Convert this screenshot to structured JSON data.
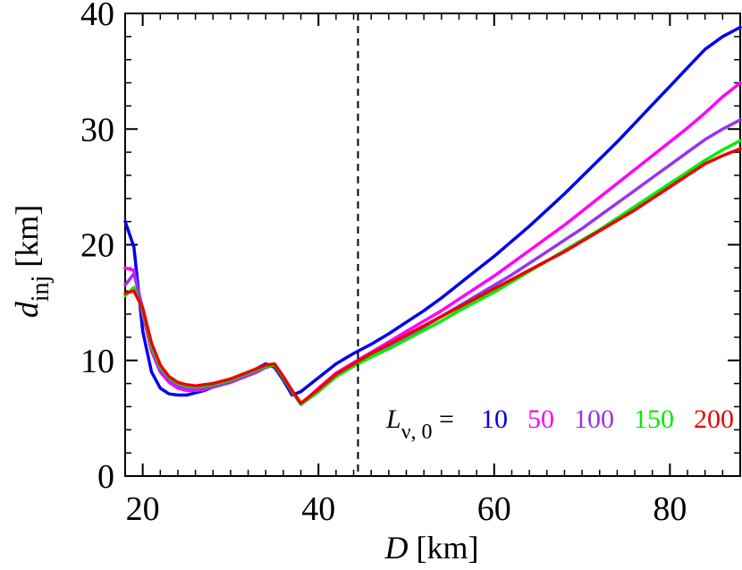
{
  "chart_data": {
    "type": "line",
    "title": "",
    "xlabel": {
      "italic": "D",
      "rest": " [km]"
    },
    "ylabel": {
      "italic": "d",
      "subscript": "inj",
      "rest": " [km]"
    },
    "xlim": [
      18,
      88
    ],
    "ylim": [
      0,
      40
    ],
    "xticks": [
      20,
      40,
      60,
      80
    ],
    "yticks": [
      0,
      10,
      20,
      30,
      40
    ],
    "grid": false,
    "reference_line": {
      "x": 44.5,
      "style": "dashed",
      "color": "#000000"
    },
    "legend": {
      "placement": "lower-right",
      "prefix_italic": "L",
      "prefix_subscript": "ν, 0",
      "prefix_suffix": " ="
    },
    "series": [
      {
        "name": "10",
        "color": "#0000ee",
        "x": [
          18,
          19,
          20,
          21,
          22,
          23,
          24,
          25,
          26,
          27,
          28,
          29,
          30,
          31,
          32,
          33,
          34,
          35,
          36,
          37,
          38,
          40,
          42,
          44,
          46,
          48,
          50,
          52,
          54,
          56,
          58,
          60,
          62,
          64,
          66,
          68,
          70,
          72,
          74,
          76,
          78,
          80,
          82,
          84,
          86,
          88
        ],
        "y": [
          22.0,
          19.8,
          12.5,
          9.0,
          7.6,
          7.1,
          7.0,
          7.0,
          7.2,
          7.4,
          7.7,
          8.0,
          8.3,
          8.6,
          8.9,
          9.3,
          9.7,
          9.4,
          8.3,
          7.0,
          7.3,
          8.5,
          9.7,
          10.6,
          11.4,
          12.3,
          13.3,
          14.3,
          15.4,
          16.6,
          17.8,
          19.0,
          20.3,
          21.6,
          23.0,
          24.4,
          25.9,
          27.4,
          28.9,
          30.5,
          32.1,
          33.7,
          35.3,
          36.9,
          38.0,
          38.8
        ]
      },
      {
        "name": "50",
        "color": "#ff00ff",
        "x": [
          18,
          19,
          20,
          21,
          22,
          23,
          24,
          25,
          26,
          27,
          28,
          29,
          30,
          31,
          32,
          33,
          34,
          35,
          36,
          37,
          38,
          40,
          42,
          44,
          46,
          48,
          50,
          52,
          54,
          56,
          58,
          60,
          62,
          64,
          66,
          68,
          70,
          72,
          74,
          76,
          78,
          80,
          82,
          84,
          86,
          88
        ],
        "y": [
          18.0,
          17.8,
          14.0,
          10.8,
          9.0,
          8.1,
          7.6,
          7.4,
          7.4,
          7.5,
          7.7,
          7.9,
          8.1,
          8.4,
          8.7,
          9.0,
          9.4,
          9.6,
          8.5,
          7.3,
          6.2,
          7.6,
          8.9,
          9.8,
          10.7,
          11.6,
          12.5,
          13.4,
          14.3,
          15.3,
          16.3,
          17.3,
          18.4,
          19.5,
          20.6,
          21.7,
          22.9,
          24.1,
          25.3,
          26.5,
          27.7,
          28.9,
          30.1,
          31.4,
          32.8,
          34.0
        ]
      },
      {
        "name": "100",
        "color": "#9933ee",
        "x": [
          18,
          19,
          20,
          21,
          22,
          23,
          24,
          25,
          26,
          27,
          28,
          29,
          30,
          31,
          32,
          33,
          34,
          35,
          36,
          37,
          38,
          40,
          42,
          44,
          46,
          48,
          50,
          52,
          54,
          56,
          58,
          60,
          62,
          64,
          66,
          68,
          70,
          72,
          74,
          76,
          78,
          80,
          82,
          84,
          86,
          88
        ],
        "y": [
          16.5,
          17.5,
          14.5,
          11.0,
          9.2,
          8.3,
          7.8,
          7.6,
          7.5,
          7.6,
          7.7,
          7.9,
          8.1,
          8.4,
          8.7,
          9.0,
          9.4,
          9.6,
          8.5,
          7.3,
          6.2,
          7.3,
          8.6,
          9.5,
          10.4,
          11.2,
          12.0,
          12.9,
          13.8,
          14.7,
          15.6,
          16.5,
          17.4,
          18.4,
          19.4,
          20.4,
          21.4,
          22.5,
          23.6,
          24.7,
          25.8,
          26.9,
          28.0,
          29.1,
          30.0,
          30.8
        ]
      },
      {
        "name": "150",
        "color": "#00ee00",
        "x": [
          18,
          19,
          20,
          21,
          22,
          23,
          24,
          25,
          26,
          27,
          28,
          29,
          30,
          31,
          32,
          33,
          34,
          35,
          36,
          37,
          38,
          40,
          42,
          44,
          46,
          48,
          50,
          52,
          54,
          56,
          58,
          60,
          62,
          64,
          66,
          68,
          70,
          72,
          74,
          76,
          78,
          80,
          82,
          84,
          86,
          88
        ],
        "y": [
          15.6,
          16.3,
          14.3,
          11.2,
          9.4,
          8.5,
          8.0,
          7.8,
          7.7,
          7.8,
          7.9,
          8.1,
          8.3,
          8.6,
          8.9,
          9.2,
          9.5,
          9.6,
          8.5,
          7.3,
          6.2,
          7.3,
          8.6,
          9.5,
          10.3,
          11.0,
          11.8,
          12.6,
          13.4,
          14.3,
          15.1,
          15.9,
          16.8,
          17.7,
          18.6,
          19.5,
          20.4,
          21.3,
          22.3,
          23.3,
          24.3,
          25.3,
          26.3,
          27.3,
          28.2,
          29.0
        ]
      },
      {
        "name": "200",
        "color": "#ee0000",
        "x": [
          18,
          19,
          20,
          21,
          22,
          23,
          24,
          25,
          26,
          27,
          28,
          29,
          30,
          31,
          32,
          33,
          34,
          35,
          36,
          37,
          38,
          40,
          42,
          44,
          46,
          48,
          50,
          52,
          54,
          56,
          58,
          60,
          62,
          64,
          66,
          68,
          70,
          72,
          74,
          76,
          78,
          80,
          82,
          84,
          86,
          88
        ],
        "y": [
          15.8,
          16.0,
          14.5,
          11.5,
          9.6,
          8.6,
          8.1,
          7.9,
          7.8,
          7.9,
          8.0,
          8.2,
          8.4,
          8.7,
          9.0,
          9.3,
          9.6,
          9.7,
          8.6,
          7.4,
          6.3,
          7.5,
          8.8,
          9.7,
          10.6,
          11.4,
          12.2,
          13.0,
          13.8,
          14.6,
          15.4,
          16.2,
          17.0,
          17.8,
          18.6,
          19.4,
          20.3,
          21.2,
          22.1,
          23.0,
          24.0,
          25.0,
          26.0,
          27.0,
          27.7,
          28.3
        ]
      }
    ]
  }
}
